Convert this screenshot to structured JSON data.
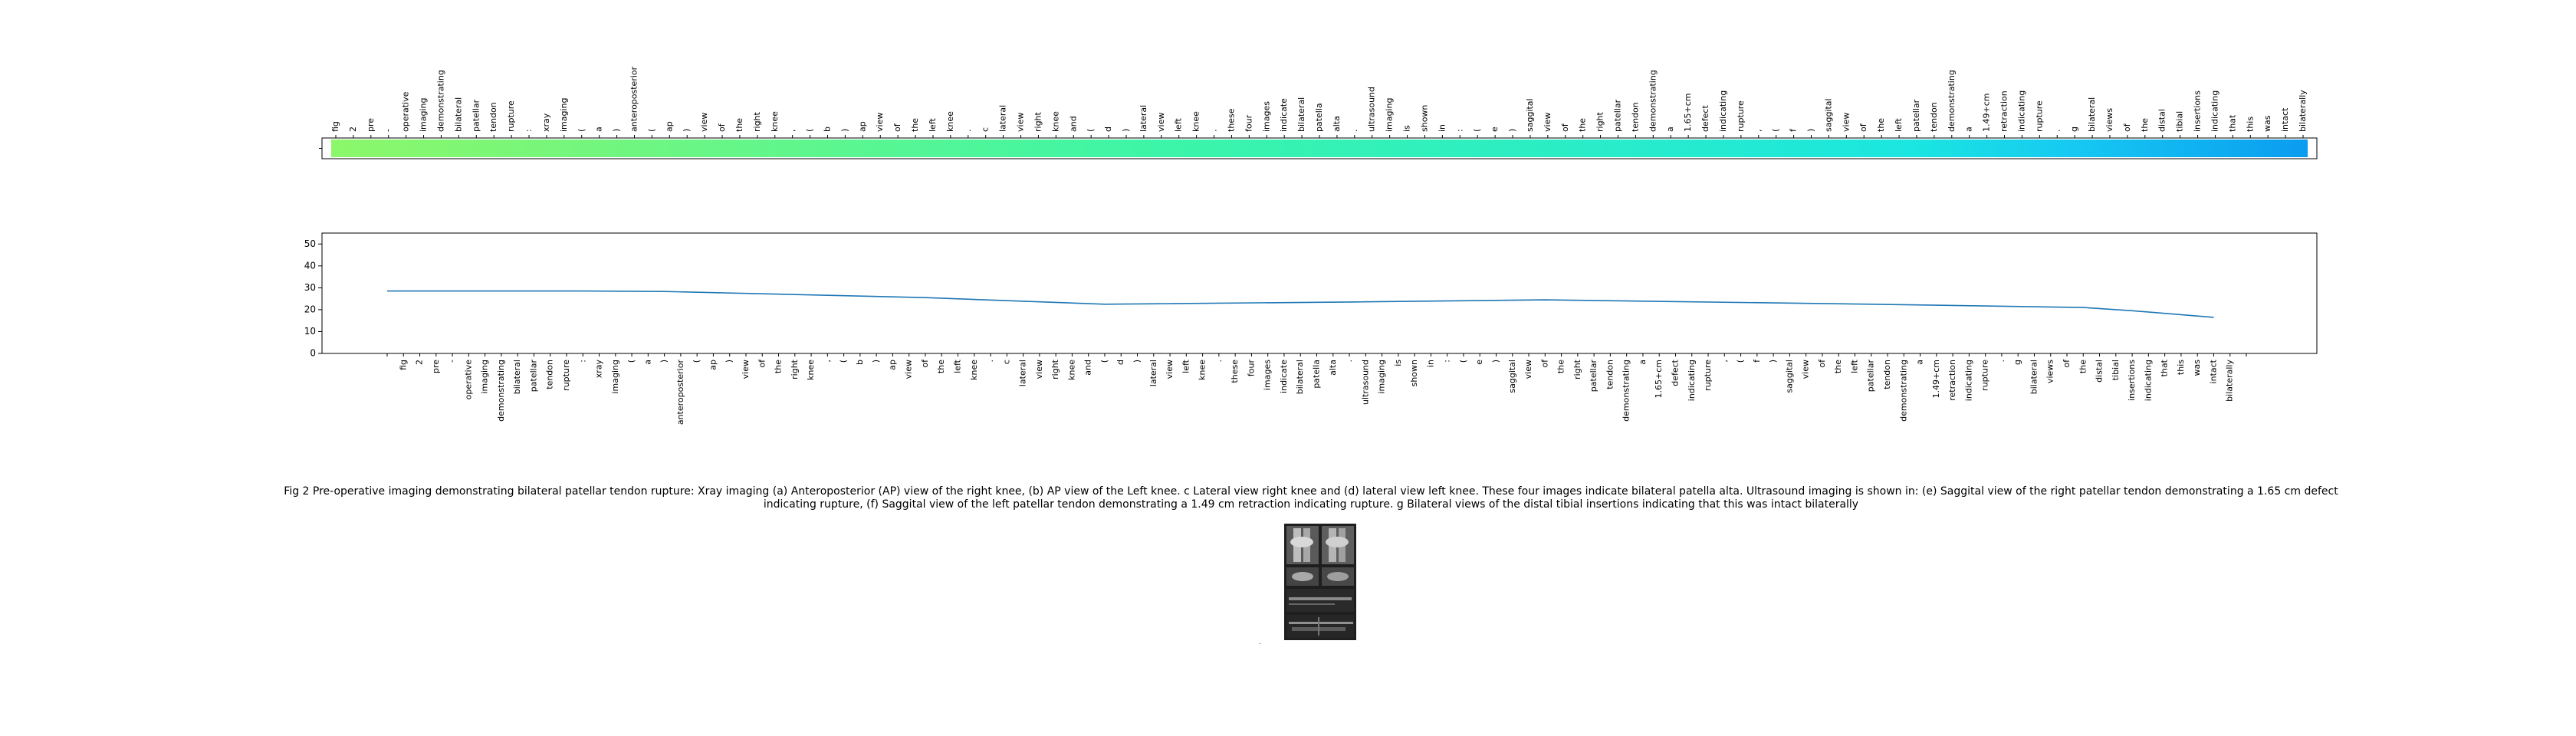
{
  "chart_data": [
    {
      "type": "heatmap",
      "colormap": "rainbow",
      "colorbar_start": "#8cf76a",
      "colorbar_end": "#0a9cf0",
      "x_labels": [
        "fig",
        "2",
        "pre",
        "-",
        "operative",
        "imaging",
        "demonstrating",
        "bilateral",
        "patellar",
        "tendon",
        "rupture",
        ":",
        "xray",
        "imaging",
        "(",
        "a",
        ")",
        "anteroposterior",
        "(",
        "ap",
        ")",
        "view",
        "of",
        "the",
        "right",
        "knee",
        ",",
        "(",
        "b",
        ")",
        "ap",
        "view",
        "of",
        "the",
        "left",
        "knee",
        ".",
        "c",
        "lateral",
        "view",
        "right",
        "knee",
        "and",
        "(",
        "d",
        ")",
        "lateral",
        "view",
        "left",
        "knee",
        ".",
        "these",
        "four",
        "images",
        "indicate",
        "bilateral",
        "patella",
        "alta",
        ".",
        "ultrasound",
        "imaging",
        "is",
        "shown",
        "in",
        ":",
        "(",
        "e",
        ")",
        "saggital",
        "view",
        "of",
        "the",
        "right",
        "patellar",
        "tendon",
        "demonstrating",
        "a",
        "1.65+cm",
        "defect",
        "indicating",
        "rupture",
        ",",
        "(",
        "f",
        ")",
        "saggital",
        "view",
        "of",
        "the",
        "left",
        "patellar",
        "tendon",
        "demonstrating",
        "a",
        "1.49+cm",
        "retraction",
        "indicating",
        "rupture",
        ".",
        "g",
        "bilateral",
        "views",
        "of",
        "the",
        "distal",
        "tibial",
        "insertions",
        "indicating",
        "that",
        "this",
        "was",
        "intact",
        "bilaterally"
      ]
    },
    {
      "type": "line",
      "x_labels": [
        "",
        "fig",
        "2",
        "pre",
        "-",
        "operative",
        "imaging",
        "demonstrating",
        "bilateral",
        "patellar",
        "tendon",
        "rupture",
        ":",
        "xray",
        "imaging",
        "(",
        "a",
        ")",
        "anteroposterior",
        "(",
        "ap",
        ")",
        "view",
        "of",
        "the",
        "right",
        "knee",
        ",",
        "(",
        "b",
        ")",
        "ap",
        "view",
        "of",
        "the",
        "left",
        "knee",
        ".",
        "c",
        "lateral",
        "view",
        "right",
        "knee",
        "and",
        "(",
        "d",
        ")",
        "lateral",
        "view",
        "left",
        "knee",
        ".",
        "these",
        "four",
        "images",
        "indicate",
        "bilateral",
        "patella",
        "alta",
        ".",
        "ultrasound",
        "imaging",
        "is",
        "shown",
        "in",
        ":",
        "(",
        "e",
        ")",
        "saggital",
        "view",
        "of",
        "the",
        "right",
        "patellar",
        "tendon",
        "demonstrating",
        "a",
        "1.65+cm",
        "defect",
        "indicating",
        "rupture",
        ",",
        "(",
        "f",
        ")",
        "saggital",
        "view",
        "of",
        "the",
        "left",
        "patellar",
        "tendon",
        "demonstrating",
        "a",
        "1.49+cm",
        "retraction",
        "indicating",
        "rupture",
        ".",
        "g",
        "bilateral",
        "views",
        "of",
        "the",
        "distal",
        "tibial",
        "insertions",
        "indicating",
        "that",
        "this",
        "was",
        "intact",
        "bilaterally",
        ""
      ],
      "keypoints": [
        [
          0,
          28.5
        ],
        [
          12,
          28.5
        ],
        [
          17,
          28.3
        ],
        [
          33,
          25.5
        ],
        [
          44,
          22.5
        ],
        [
          59,
          23.5
        ],
        [
          71,
          24.5
        ],
        [
          91,
          22.5
        ],
        [
          104,
          21.0
        ],
        [
          107,
          19.5
        ],
        [
          112,
          16.5
        ]
      ],
      "series_color": "#1f77b4",
      "yticks": [
        0,
        10,
        20,
        30,
        40,
        50
      ],
      "ylim": [
        0,
        55
      ],
      "grid": false
    }
  ],
  "caption": "Fig 2 Pre-operative imaging demonstrating bilateral patellar tendon rupture: Xray imaging (a) Anteroposterior (AP) view of the right knee, (b) AP view of the Left knee. c Lateral view right knee and (d) lateral view left knee. These four images indicate bilateral patella alta. Ultrasound imaging is shown in: (e) Saggital view of the right patellar tendon demonstrating a 1.65 cm defect indicating rupture, (f) Saggital view of the left patellar tendon demonstrating a 1.49 cm retraction indicating rupture. g Bilateral views of the distal tibial insertions indicating that this was intact bilaterally",
  "thumbnail_dot": "."
}
